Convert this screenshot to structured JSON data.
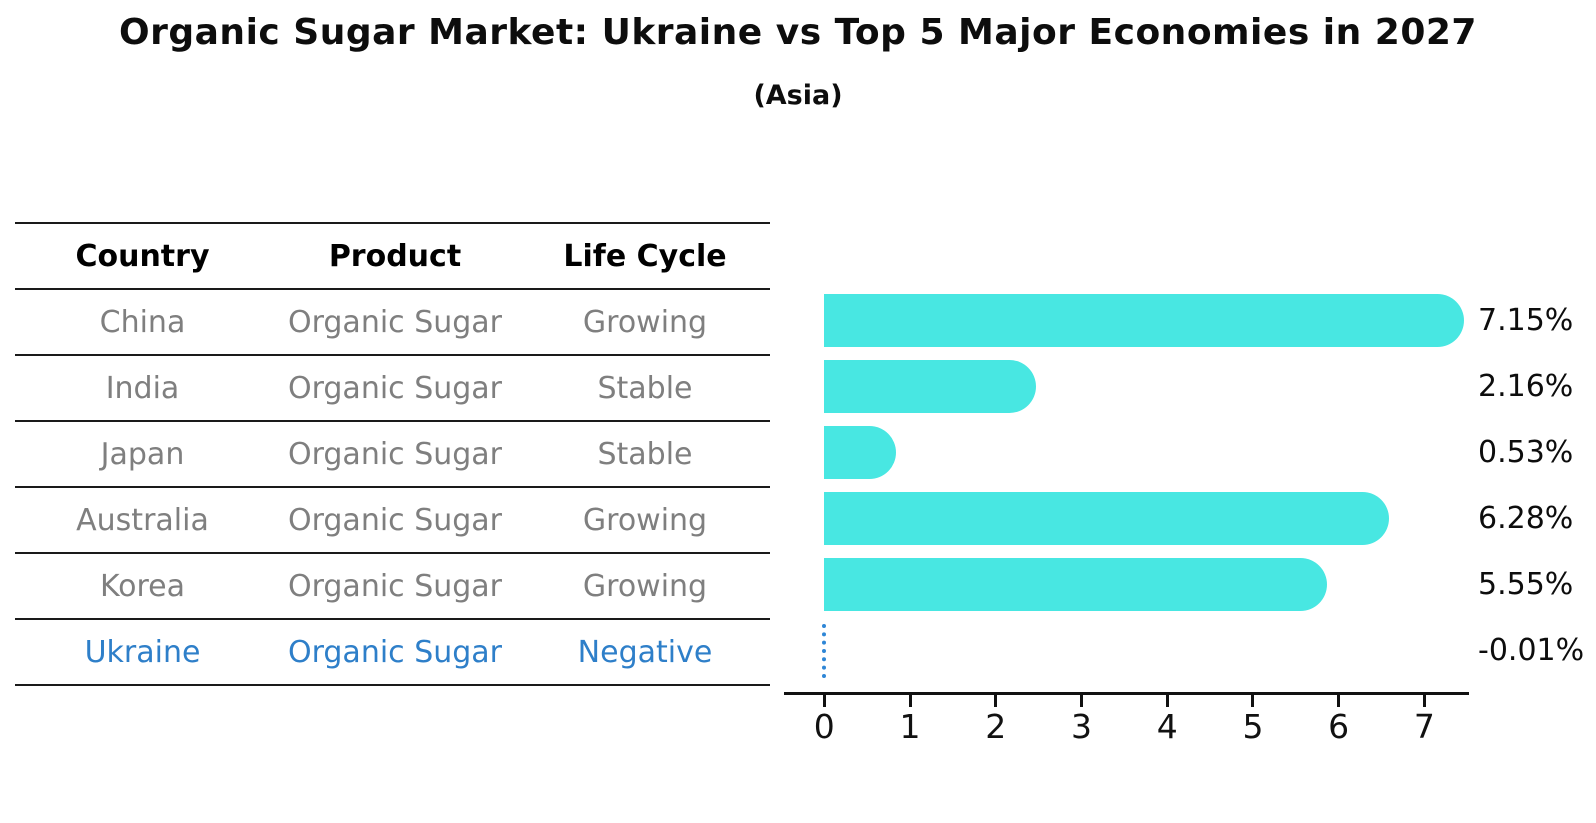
{
  "title": "Organic Sugar Market: Ukraine vs Top 5 Major Economies in 2027",
  "subtitle": "(Asia)",
  "table": {
    "headers": [
      "Country",
      "Product",
      "Life Cycle"
    ],
    "rows": [
      {
        "country": "China",
        "product": "Organic Sugar",
        "life_cycle": "Growing",
        "highlight": false
      },
      {
        "country": "India",
        "product": "Organic Sugar",
        "life_cycle": "Stable",
        "highlight": false
      },
      {
        "country": "Japan",
        "product": "Organic Sugar",
        "life_cycle": "Stable",
        "highlight": false
      },
      {
        "country": "Australia",
        "product": "Organic Sugar",
        "life_cycle": "Growing",
        "highlight": false
      },
      {
        "country": "Korea",
        "product": "Organic Sugar",
        "life_cycle": "Growing",
        "highlight": false
      },
      {
        "country": "Ukraine",
        "product": "Organic Sugar",
        "life_cycle": "Negative",
        "highlight": true
      }
    ]
  },
  "chart_data": {
    "type": "bar",
    "orientation": "horizontal",
    "title": "Organic Sugar Market: Ukraine vs Top 5 Major Economies in 2027",
    "subtitle": "(Asia)",
    "categories": [
      "China",
      "India",
      "Japan",
      "Australia",
      "Korea",
      "Ukraine"
    ],
    "values": [
      7.15,
      2.16,
      0.53,
      6.28,
      5.55,
      -0.01
    ],
    "value_labels": [
      "7.15%",
      "2.16%",
      "0.53%",
      "6.28%",
      "5.55%",
      "-0.01%"
    ],
    "x_ticks": [
      0,
      1,
      2,
      3,
      4,
      5,
      6,
      7
    ],
    "xlim": [
      -0.47,
      7.52
    ],
    "xlabel": "",
    "ylabel": "",
    "grid": false,
    "legend": false,
    "bar_color": "#48e7e2",
    "negative_marker": "dotted-line"
  },
  "colors": {
    "bar": "#48e7e2",
    "highlight_text": "#2e7fc9",
    "table_text": "#7f7f7f",
    "heading_text": "#0d0d0d",
    "axis": "#111111",
    "negative_marker": "#2e86d6",
    "background": "#ffffff"
  }
}
